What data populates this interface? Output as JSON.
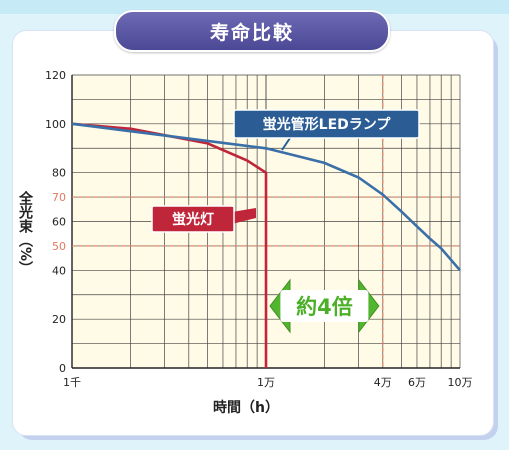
{
  "chart_data": {
    "type": "line",
    "title": "寿命比較",
    "ylabel": "全光束（%）",
    "xlabel": "時間（h）",
    "x_scale": "log",
    "xlim": [
      1000,
      100000
    ],
    "ylim": [
      0,
      120
    ],
    "x_ticks": [
      {
        "value": 1000,
        "label": "1千"
      },
      {
        "value": 10000,
        "label": "1万"
      },
      {
        "value": 40000,
        "label": "4万"
      },
      {
        "value": 60000,
        "label": "6万"
      },
      {
        "value": 100000,
        "label": "10万"
      }
    ],
    "y_ticks": [
      0,
      20,
      40,
      50,
      60,
      70,
      80,
      100,
      120
    ],
    "y_ref_lines": [
      70,
      50
    ],
    "x_ref_line": 40000,
    "grid": true,
    "series": [
      {
        "name": "蛍光管形LEDランプ",
        "color": "#3a6fa8",
        "x": [
          1000,
          2000,
          5000,
          10000,
          20000,
          30000,
          40000,
          50000,
          60000,
          70000,
          80000,
          100000
        ],
        "y": [
          100,
          97,
          93,
          90,
          84,
          78,
          71,
          64,
          58,
          53,
          49,
          40
        ]
      },
      {
        "name": "蛍光灯",
        "color": "#c0263a",
        "x": [
          1000,
          2000,
          5000,
          8000,
          10000,
          10000
        ],
        "y": [
          100,
          98,
          92,
          85,
          80,
          0
        ]
      }
    ],
    "annotation": {
      "text": "約4倍",
      "color": "#4caf28"
    }
  }
}
